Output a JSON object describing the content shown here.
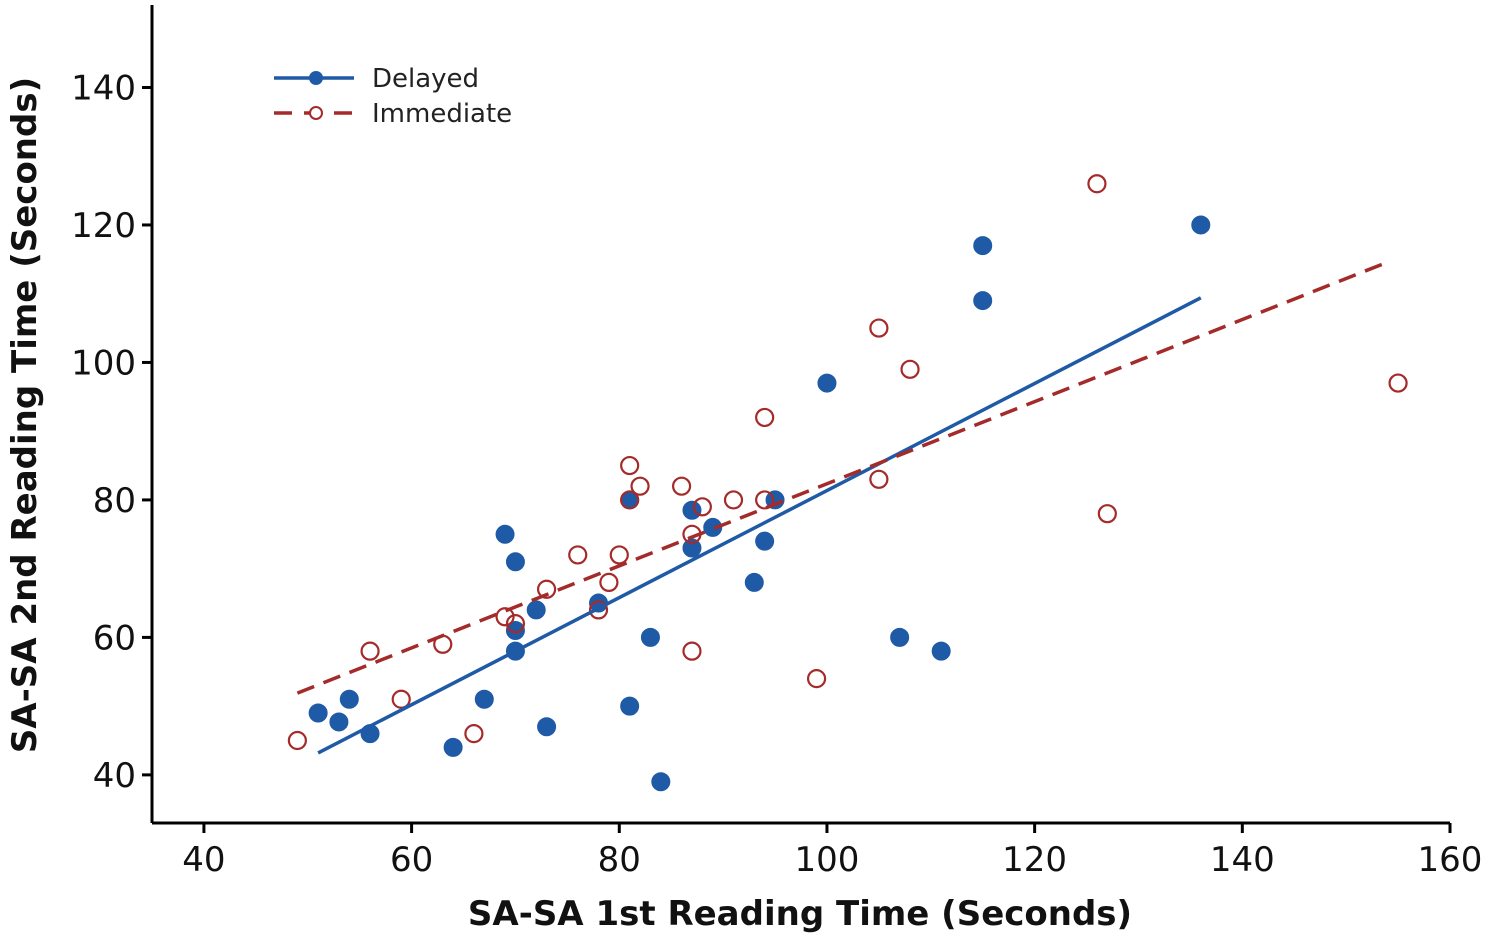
{
  "chart_data": {
    "type": "scatter",
    "title": "",
    "xlabel": "SA-SA 1st Reading Time (Seconds)",
    "ylabel": "SA-SA 2nd Reading Time (Seconds)",
    "xlim": [
      35,
      160
    ],
    "ylim": [
      33,
      152
    ],
    "xticks": [
      40,
      60,
      80,
      100,
      120,
      140,
      160
    ],
    "yticks": [
      40,
      60,
      80,
      100,
      120,
      140
    ],
    "grid": false,
    "legend_position": "top-left",
    "series": [
      {
        "name": "Delayed",
        "color": "#1f5aa6",
        "marker": "filled-circle",
        "line_style": "solid",
        "points": [
          [
            51,
            49
          ],
          [
            53,
            47.7
          ],
          [
            54,
            51
          ],
          [
            56,
            46
          ],
          [
            64,
            44
          ],
          [
            67,
            51
          ],
          [
            69,
            75
          ],
          [
            70,
            71
          ],
          [
            70,
            61
          ],
          [
            70,
            58
          ],
          [
            72,
            64
          ],
          [
            73,
            47
          ],
          [
            78,
            65
          ],
          [
            81,
            80
          ],
          [
            81,
            50
          ],
          [
            83,
            60
          ],
          [
            84,
            39
          ],
          [
            87,
            78.5
          ],
          [
            87,
            73
          ],
          [
            89,
            76
          ],
          [
            93,
            68
          ],
          [
            94,
            74
          ],
          [
            95,
            80
          ],
          [
            100,
            97
          ],
          [
            107,
            60
          ],
          [
            111,
            58
          ],
          [
            115,
            117
          ],
          [
            115,
            109
          ],
          [
            136,
            120
          ]
        ],
        "fit_line": [
          [
            51,
            43.2
          ],
          [
            136,
            109.4
          ]
        ]
      },
      {
        "name": "Immediate",
        "color": "#a52a2a",
        "marker": "open-circle",
        "line_style": "dashed",
        "points": [
          [
            49,
            45
          ],
          [
            56,
            58
          ],
          [
            59,
            51
          ],
          [
            63,
            59
          ],
          [
            66,
            46
          ],
          [
            69,
            63
          ],
          [
            70,
            62
          ],
          [
            73,
            67
          ],
          [
            76,
            72
          ],
          [
            78,
            64
          ],
          [
            79,
            68
          ],
          [
            80,
            72
          ],
          [
            81,
            85
          ],
          [
            81,
            80
          ],
          [
            82,
            82
          ],
          [
            86,
            82
          ],
          [
            87,
            75
          ],
          [
            87,
            58
          ],
          [
            88,
            79
          ],
          [
            91,
            80
          ],
          [
            94,
            92
          ],
          [
            94,
            80
          ],
          [
            99,
            54
          ],
          [
            105,
            105
          ],
          [
            105,
            83
          ],
          [
            108,
            99
          ],
          [
            126,
            126
          ],
          [
            127,
            78
          ],
          [
            155,
            97
          ]
        ],
        "fit_line": [
          [
            49,
            51.9
          ],
          [
            154,
            114.6
          ]
        ]
      }
    ]
  }
}
